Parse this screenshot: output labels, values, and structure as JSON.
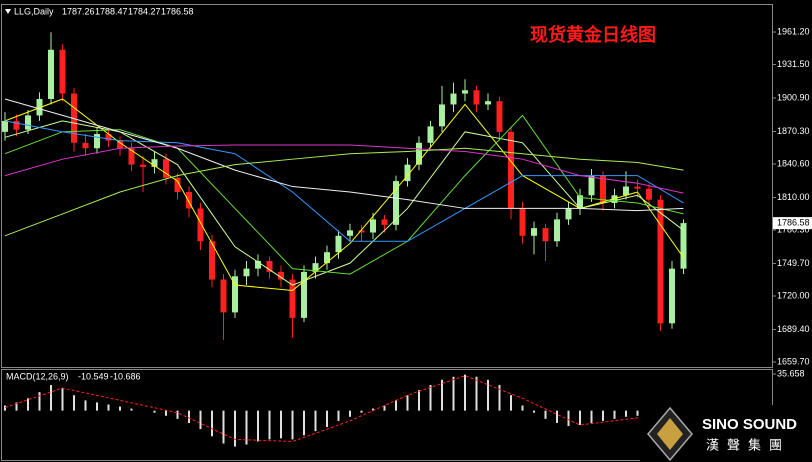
{
  "chart_data": {
    "type": "candlestick",
    "title": "现货黄金日线图",
    "symbol": "LLG,Daily",
    "quote": [
      1787.26,
      1788.47,
      1784.27,
      1786.58
    ],
    "current_price": 1786.58,
    "bull_color": "#a8f0a0",
    "bear_color": "#ff2020",
    "ylim": [
      1655.1,
      1985.9
    ],
    "yticks": [
      {
        "value": 1961.2,
        "label": "1961.20"
      },
      {
        "value": 1931.5,
        "label": "1931.50"
      },
      {
        "value": 1900.9,
        "label": "1900.90"
      },
      {
        "value": 1870.3,
        "label": "1870.30"
      },
      {
        "value": 1840.6,
        "label": "1840.60"
      },
      {
        "value": 1810,
        "label": "1810.00"
      },
      {
        "value": 1780.3,
        "label": "1780.30"
      },
      {
        "value": 1749.7,
        "label": "1749.70"
      },
      {
        "value": 1720,
        "label": "1720.00"
      },
      {
        "value": 1689.4,
        "label": "1689.40"
      },
      {
        "value": 1659.7,
        "label": "1659.70"
      }
    ],
    "candles": [
      [
        1870,
        1888,
        1862,
        1880
      ],
      [
        1880,
        1886,
        1866,
        1872
      ],
      [
        1872,
        1890,
        1868,
        1885
      ],
      [
        1885,
        1906,
        1880,
        1900
      ],
      [
        1900,
        1961,
        1895,
        1945
      ],
      [
        1945,
        1950,
        1898,
        1905
      ],
      [
        1905,
        1910,
        1852,
        1860
      ],
      [
        1860,
        1868,
        1848,
        1855
      ],
      [
        1855,
        1874,
        1850,
        1868
      ],
      [
        1868,
        1872,
        1856,
        1862
      ],
      [
        1862,
        1866,
        1848,
        1855
      ],
      [
        1855,
        1860,
        1834,
        1840
      ],
      [
        1840,
        1848,
        1815,
        1838
      ],
      [
        1838,
        1852,
        1832,
        1845
      ],
      [
        1845,
        1850,
        1822,
        1828
      ],
      [
        1828,
        1832,
        1808,
        1815
      ],
      [
        1815,
        1820,
        1792,
        1800
      ],
      [
        1800,
        1805,
        1762,
        1770
      ],
      [
        1770,
        1776,
        1728,
        1735
      ],
      [
        1735,
        1740,
        1680,
        1705
      ],
      [
        1705,
        1744,
        1700,
        1738
      ],
      [
        1738,
        1752,
        1730,
        1745
      ],
      [
        1745,
        1758,
        1738,
        1752
      ],
      [
        1752,
        1756,
        1736,
        1742
      ],
      [
        1742,
        1748,
        1728,
        1735
      ],
      [
        1735,
        1740,
        1682,
        1700
      ],
      [
        1700,
        1748,
        1696,
        1742
      ],
      [
        1742,
        1756,
        1736,
        1750
      ],
      [
        1750,
        1766,
        1744,
        1760
      ],
      [
        1760,
        1780,
        1754,
        1775
      ],
      [
        1775,
        1786,
        1770,
        1780
      ],
      [
        1780,
        1785,
        1770,
        1778
      ],
      [
        1778,
        1796,
        1772,
        1790
      ],
      [
        1790,
        1794,
        1778,
        1785
      ],
      [
        1785,
        1830,
        1780,
        1825
      ],
      [
        1825,
        1846,
        1820,
        1840
      ],
      [
        1840,
        1866,
        1835,
        1860
      ],
      [
        1860,
        1880,
        1855,
        1875
      ],
      [
        1875,
        1912,
        1870,
        1895
      ],
      [
        1895,
        1915,
        1888,
        1905
      ],
      [
        1905,
        1918,
        1898,
        1908
      ],
      [
        1908,
        1912,
        1888,
        1895
      ],
      [
        1895,
        1905,
        1890,
        1898
      ],
      [
        1898,
        1902,
        1862,
        1870
      ],
      [
        1870,
        1875,
        1790,
        1800
      ],
      [
        1800,
        1806,
        1768,
        1775
      ],
      [
        1775,
        1788,
        1758,
        1782
      ],
      [
        1782,
        1786,
        1752,
        1770
      ],
      [
        1770,
        1796,
        1765,
        1790
      ],
      [
        1790,
        1806,
        1785,
        1800
      ],
      [
        1800,
        1818,
        1794,
        1812
      ],
      [
        1812,
        1836,
        1806,
        1830
      ],
      [
        1830,
        1834,
        1798,
        1805
      ],
      [
        1805,
        1818,
        1800,
        1812
      ],
      [
        1812,
        1834,
        1808,
        1820
      ],
      [
        1820,
        1826,
        1810,
        1818
      ],
      [
        1818,
        1822,
        1800,
        1808
      ],
      [
        1808,
        1812,
        1688,
        1695
      ],
      [
        1695,
        1752,
        1690,
        1745
      ],
      [
        1745,
        1790,
        1740,
        1786.58
      ]
    ],
    "moving_averages": [
      {
        "color": "#ffff00",
        "x": [
          0,
          5,
          10,
          15,
          20,
          25,
          30,
          35,
          40,
          45,
          50,
          55,
          59
        ],
        "values": [
          1880,
          1900,
          1860,
          1825,
          1730,
          1725,
          1768,
          1830,
          1895,
          1830,
          1800,
          1815,
          1755
        ]
      },
      {
        "color": "#ccff99",
        "x": [
          0,
          5,
          10,
          15,
          20,
          25,
          30,
          35,
          40,
          45,
          50,
          55,
          59
        ],
        "values": [
          1865,
          1880,
          1870,
          1840,
          1765,
          1730,
          1750,
          1800,
          1870,
          1860,
          1800,
          1812,
          1780
        ]
      },
      {
        "color": "#66dd33",
        "x": [
          0,
          5,
          10,
          15,
          20,
          25,
          30,
          35,
          40,
          45,
          50,
          55,
          59
        ],
        "values": [
          1850,
          1870,
          1872,
          1855,
          1800,
          1745,
          1740,
          1770,
          1830,
          1885,
          1810,
          1805,
          1795
        ]
      },
      {
        "color": "#3399ff",
        "x": [
          0,
          5,
          10,
          15,
          20,
          25,
          30,
          35,
          40,
          45,
          50,
          55,
          59
        ],
        "values": [
          1880,
          1870,
          1862,
          1860,
          1850,
          1815,
          1770,
          1770,
          1800,
          1830,
          1830,
          1830,
          1805
        ]
      },
      {
        "color": "#f0f0f0",
        "x": [
          0,
          5,
          10,
          15,
          20,
          25,
          30,
          35,
          40,
          45,
          50,
          55,
          59
        ],
        "values": [
          1900,
          1885,
          1870,
          1855,
          1835,
          1820,
          1815,
          1808,
          1800,
          1800,
          1800,
          1798,
          1800
        ]
      },
      {
        "color": "#dd33cc",
        "x": [
          0,
          5,
          10,
          15,
          20,
          25,
          30,
          35,
          40,
          45,
          50,
          55,
          59
        ],
        "values": [
          1830,
          1845,
          1855,
          1857,
          1858,
          1858,
          1858,
          1855,
          1852,
          1845,
          1830,
          1823,
          1814
        ]
      },
      {
        "color": "#aaee55",
        "x": [
          0,
          5,
          10,
          15,
          20,
          25,
          30,
          35,
          40,
          45,
          50,
          55,
          59
        ],
        "values": [
          1775,
          1795,
          1815,
          1830,
          1840,
          1845,
          1850,
          1852,
          1855,
          1850,
          1845,
          1842,
          1835
        ]
      }
    ],
    "macd": {
      "label": "MACD(12,26,9)",
      "macd_value": -10.549,
      "signal_value": -10.686,
      "ylim": [
        -40.254,
        35.658
      ],
      "yticks": [
        35.658,
        {
          "value": 0,
          "label": "0.00"
        },
        -40.254
      ],
      "histogram_color": "#e0e0e0",
      "signal_color": "#ff2020",
      "histogram": [
        5,
        8,
        12,
        18,
        25,
        22,
        15,
        10,
        8,
        6,
        4,
        2,
        0,
        -2,
        -5,
        -8,
        -12,
        -18,
        -25,
        -32,
        -35,
        -33,
        -30,
        -28,
        -27,
        -28,
        -24,
        -20,
        -16,
        -10,
        -6,
        -2,
        2,
        5,
        10,
        15,
        20,
        25,
        30,
        33,
        35,
        33,
        30,
        25,
        15,
        5,
        -2,
        -8,
        -12,
        -15,
        -14,
        -12,
        -10,
        -8,
        -6,
        -5,
        -5,
        -12,
        -14,
        -10.549
      ],
      "signal": {
        "x": [
          0,
          5,
          10,
          15,
          20,
          25,
          30,
          35,
          40,
          45,
          50,
          55,
          59
        ],
        "values": [
          3,
          22,
          10,
          -2,
          -28,
          -30,
          -10,
          15,
          34,
          12,
          -14,
          -7,
          -10.686
        ]
      }
    }
  },
  "logo": {
    "name": "SINO SOUND",
    "subtitle": "漢聲集團"
  }
}
